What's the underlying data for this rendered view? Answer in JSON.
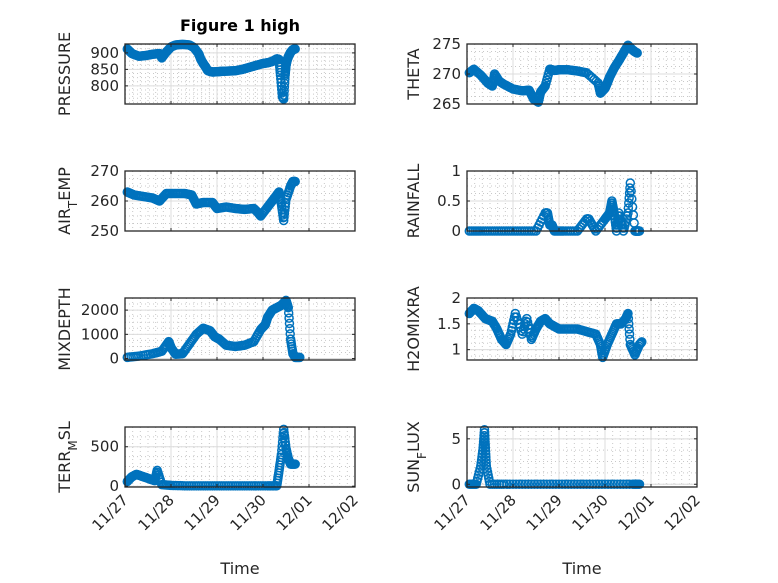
{
  "chart_data": [
    {
      "type": "scatter",
      "title": "Figure 1 high",
      "xlabel": "",
      "ylabel": "PRESSURE",
      "ylim": [
        745,
        927
      ],
      "yticks": [
        800,
        850,
        900
      ],
      "ytick_labels": [
        "800",
        "850",
        "900"
      ],
      "xlim": [
        "11/27",
        "12/02"
      ],
      "grid": true,
      "series": [
        {
          "name": "PRESSURE",
          "x": [
            0.05,
            0.15,
            0.3,
            0.45,
            0.6,
            0.75,
            0.8,
            0.9,
            1.0,
            1.1,
            1.25,
            1.4,
            1.5,
            1.6,
            1.65,
            1.7,
            1.75,
            1.8,
            1.9,
            2.0,
            2.1,
            2.25,
            2.4,
            2.55,
            2.7,
            2.85,
            3.0,
            3.1,
            3.2,
            3.3,
            3.35,
            3.38,
            3.42,
            3.45,
            3.48,
            3.5,
            3.52,
            3.55,
            3.6,
            3.65,
            3.7
          ],
          "y": [
            912,
            898,
            890,
            892,
            896,
            898,
            885,
            903,
            918,
            924,
            926,
            924,
            916,
            898,
            880,
            868,
            858,
            846,
            842,
            843,
            844,
            845,
            846,
            850,
            856,
            862,
            868,
            870,
            874,
            882,
            880,
            832,
            768,
            760,
            832,
            862,
            876,
            888,
            902,
            910,
            912
          ]
        }
      ]
    },
    {
      "type": "scatter",
      "title": "",
      "xlabel": "",
      "ylabel": "THETA",
      "ylim": [
        265,
        275
      ],
      "yticks": [
        265,
        270,
        275
      ],
      "ytick_labels": [
        "265",
        "270",
        "275"
      ],
      "xlim": [
        "11/27",
        "12/02"
      ],
      "grid": true,
      "series": [
        {
          "name": "THETA",
          "x": [
            0.05,
            0.15,
            0.3,
            0.45,
            0.55,
            0.6,
            0.7,
            0.8,
            1.0,
            1.2,
            1.35,
            1.45,
            1.55,
            1.6,
            1.7,
            1.8,
            1.9,
            2.0,
            2.2,
            2.4,
            2.6,
            2.85,
            2.9,
            3.0,
            3.05,
            3.1,
            3.2,
            3.3,
            3.4,
            3.5,
            3.6,
            3.65,
            3.7
          ],
          "y": [
            270.2,
            270.8,
            269.8,
            268.5,
            268.0,
            270.0,
            268.8,
            268.3,
            267.5,
            267.2,
            267.3,
            265.8,
            265.3,
            267,
            268,
            270.8,
            270.6,
            270.7,
            270.7,
            270.5,
            270.2,
            268.5,
            266.8,
            267.6,
            268.5,
            269.5,
            271,
            272.2,
            273.5,
            274.8,
            274,
            273.7,
            273.5
          ]
        }
      ]
    },
    {
      "type": "scatter",
      "title": "",
      "xlabel": "",
      "ylabel": "AIR_TEMP",
      "ylim": [
        250,
        270
      ],
      "yticks": [
        250,
        260,
        270
      ],
      "ytick_labels": [
        "250",
        "260",
        "270"
      ],
      "xlim": [
        "11/27",
        "12/02"
      ],
      "grid": true,
      "series": [
        {
          "name": "AIR_TEMP",
          "x": [
            0.05,
            0.2,
            0.4,
            0.6,
            0.75,
            0.9,
            1.1,
            1.3,
            1.45,
            1.55,
            1.7,
            1.9,
            2.0,
            2.2,
            2.4,
            2.6,
            2.8,
            2.9,
            2.95,
            3.1,
            3.2,
            3.3,
            3.35,
            3.4,
            3.45,
            3.5,
            3.6,
            3.65,
            3.7
          ],
          "y": [
            263,
            262,
            261.5,
            261,
            260,
            262.5,
            262.5,
            262.5,
            262,
            259,
            259.5,
            259.5,
            257.5,
            258,
            257.5,
            257.2,
            257.5,
            256,
            255,
            258,
            260,
            262,
            263,
            259,
            253.5,
            260.5,
            265,
            266.5,
            266.5
          ]
        }
      ]
    },
    {
      "type": "scatter",
      "title": "",
      "xlabel": "",
      "ylabel": "RAINFALL",
      "ylim": [
        0,
        1
      ],
      "yticks": [
        0,
        0.5,
        1
      ],
      "ytick_labels": [
        "0",
        "0.5",
        "1"
      ],
      "xlim": [
        "11/27",
        "12/02"
      ],
      "grid": true,
      "series": [
        {
          "name": "RAINFALL",
          "x": [
            0.05,
            0.3,
            0.6,
            0.9,
            1.2,
            1.5,
            1.7,
            1.75,
            1.8,
            1.85,
            1.9,
            2.1,
            2.4,
            2.6,
            2.65,
            2.8,
            3.0,
            3.1,
            3.15,
            3.2,
            3.25,
            3.3,
            3.4,
            3.5,
            3.55,
            3.65,
            3.7,
            3.75
          ],
          "y": [
            0,
            0,
            0,
            0,
            0,
            0,
            0.3,
            0.3,
            0.1,
            0.1,
            0,
            0,
            0,
            0.2,
            0.2,
            0,
            0.2,
            0.3,
            0.5,
            0.3,
            0,
            0.3,
            0,
            0.3,
            0.8,
            0,
            0,
            0
          ]
        }
      ]
    },
    {
      "type": "scatter",
      "title": "",
      "xlabel": "",
      "ylabel": "MIXDEPTH",
      "ylim": [
        -60,
        2500
      ],
      "yticks": [
        0,
        1000,
        2000
      ],
      "ytick_labels": [
        "0",
        "1000",
        "2000"
      ],
      "xlim": [
        "11/27",
        "12/02"
      ],
      "grid": true,
      "series": [
        {
          "name": "MIXDEPTH",
          "x": [
            0.05,
            0.3,
            0.6,
            0.8,
            0.95,
            1.0,
            1.1,
            1.25,
            1.4,
            1.55,
            1.7,
            1.85,
            1.95,
            2.05,
            2.2,
            2.4,
            2.6,
            2.8,
            2.95,
            3.05,
            3.1,
            3.2,
            3.3,
            3.4,
            3.5,
            3.55,
            3.6,
            3.65,
            3.7,
            3.8
          ],
          "y": [
            50,
            100,
            200,
            300,
            700,
            450,
            180,
            200,
            600,
            1000,
            1250,
            1150,
            900,
            800,
            550,
            500,
            550,
            700,
            1200,
            1400,
            1700,
            2000,
            2100,
            2200,
            2400,
            2100,
            800,
            200,
            50,
            50
          ]
        }
      ]
    },
    {
      "type": "scatter",
      "title": "",
      "xlabel": "",
      "ylabel": "H2OMIXRA",
      "ylim": [
        0.8,
        2
      ],
      "yticks": [
        1,
        1.5,
        2
      ],
      "ytick_labels": [
        "1",
        "1.5",
        "2"
      ],
      "xlim": [
        "11/27",
        "12/02"
      ],
      "grid": true,
      "series": [
        {
          "name": "H2OMIXRA",
          "x": [
            0.05,
            0.15,
            0.25,
            0.4,
            0.55,
            0.65,
            0.75,
            0.85,
            0.95,
            1.05,
            1.2,
            1.3,
            1.4,
            1.5,
            1.6,
            1.7,
            1.8,
            1.9,
            2.0,
            2.2,
            2.4,
            2.6,
            2.8,
            2.9,
            2.95,
            3.05,
            3.15,
            3.25,
            3.35,
            3.45,
            3.5,
            3.55,
            3.65,
            3.75,
            3.8
          ],
          "y": [
            1.7,
            1.8,
            1.75,
            1.6,
            1.55,
            1.4,
            1.2,
            1.1,
            1.3,
            1.7,
            1.3,
            1.6,
            1.2,
            1.4,
            1.55,
            1.6,
            1.5,
            1.45,
            1.4,
            1.4,
            1.4,
            1.35,
            1.3,
            1.1,
            0.85,
            1.1,
            1.3,
            1.5,
            1.5,
            1.6,
            1.7,
            1.1,
            0.9,
            1.1,
            1.15
          ]
        }
      ]
    },
    {
      "type": "scatter",
      "title": "",
      "xlabel": "Time",
      "ylabel": "TERR_MSL",
      "ylim": [
        -10,
        750
      ],
      "yticks": [
        0,
        500
      ],
      "ytick_labels": [
        "0",
        "500"
      ],
      "xlim": [
        "11/27",
        "12/02"
      ],
      "xticks": [
        "11/27",
        "11/28",
        "11/29",
        "11/30",
        "12/01",
        "12/02"
      ],
      "grid": true,
      "series": [
        {
          "name": "TERR_MSL",
          "x": [
            0.05,
            0.15,
            0.25,
            0.35,
            0.45,
            0.55,
            0.65,
            0.7,
            0.8,
            1.0,
            1.3,
            1.6,
            1.9,
            2.2,
            2.5,
            2.8,
            3.1,
            3.3,
            3.35,
            3.4,
            3.45,
            3.5,
            3.55,
            3.6,
            3.7
          ],
          "y": [
            60,
            120,
            150,
            130,
            110,
            90,
            70,
            200,
            20,
            10,
            5,
            5,
            5,
            5,
            5,
            5,
            5,
            5,
            200,
            400,
            720,
            480,
            350,
            280,
            280
          ]
        }
      ]
    },
    {
      "type": "scatter",
      "title": "",
      "xlabel": "Time",
      "ylabel": "SUN_FLUX",
      "ylim": [
        -0.3,
        6.3
      ],
      "yticks": [
        0,
        5
      ],
      "ytick_labels": [
        "0",
        "5"
      ],
      "xlim": [
        "11/27",
        "12/02"
      ],
      "xticks": [
        "11/27",
        "11/28",
        "11/29",
        "11/30",
        "12/01",
        "12/02"
      ],
      "grid": true,
      "series": [
        {
          "name": "SUN_FLUX",
          "x": [
            0.05,
            0.2,
            0.3,
            0.35,
            0.38,
            0.4,
            0.42,
            0.5,
            0.8,
            1.2,
            1.6,
            2.0,
            2.4,
            2.8,
            3.2,
            3.6,
            3.75
          ],
          "y": [
            0,
            0,
            2,
            4,
            6,
            4,
            2,
            0,
            0,
            0,
            0,
            0,
            0,
            0,
            0,
            0,
            0
          ]
        }
      ]
    }
  ],
  "figure": {
    "title": "Figure 1 high",
    "xlabel": "Time",
    "marker_color": "#0072BD"
  }
}
